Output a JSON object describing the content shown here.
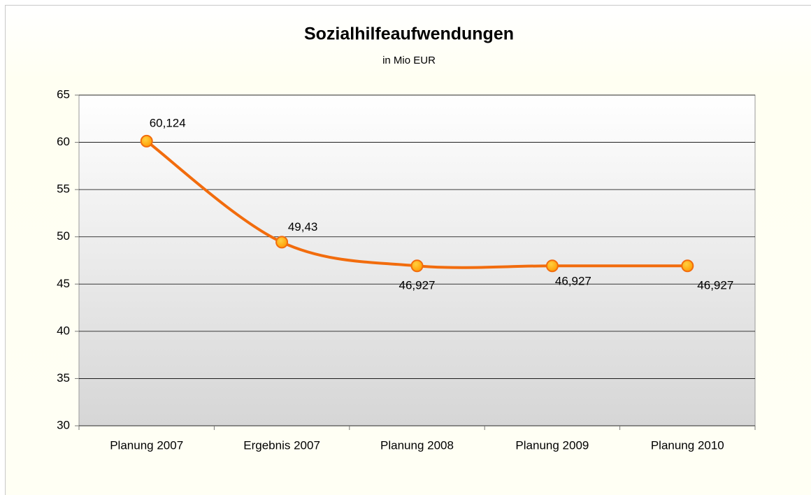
{
  "chart_data": {
    "type": "line",
    "title": "Sozialhilfeaufwendungen",
    "subtitle": "in Mio EUR",
    "categories": [
      "Planung 2007",
      "Ergebnis 2007",
      "Planung 2008",
      "Planung 2009",
      "Planung 2010"
    ],
    "values": [
      60.124,
      49.43,
      46.927,
      46.927,
      46.927
    ],
    "value_labels": [
      "60,124",
      "49,43",
      "46,927",
      "46,927",
      "46,927"
    ],
    "color": "#f26c0d",
    "ylim": [
      30,
      65
    ],
    "yticks": [
      30,
      35,
      40,
      45,
      50,
      55,
      60,
      65
    ],
    "grid": true
  }
}
